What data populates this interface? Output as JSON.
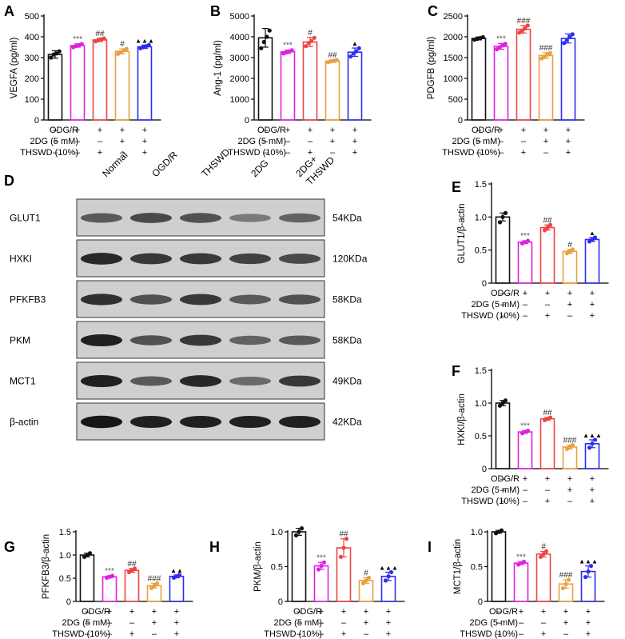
{
  "colors": [
    "#111111",
    "#e020e0",
    "#ee4444",
    "#e8a040",
    "#2c2cf0"
  ],
  "conditions": {
    "rows": [
      {
        "label": "ODG/R",
        "signs": [
          "—",
          "+",
          "+",
          "+",
          "+"
        ]
      },
      {
        "label": "2DG (5 mM)",
        "signs": [
          "—",
          "—",
          "—",
          "+",
          "+"
        ]
      },
      {
        "label": "THSWD (10%)",
        "signs": [
          "—",
          "—",
          "+",
          "—",
          "+"
        ]
      }
    ]
  },
  "blot": {
    "letter": "D",
    "lanes": [
      "Normal",
      "OGD/R",
      "THSWD",
      "2DG",
      "2DG+\nTHSWD"
    ],
    "rows": [
      {
        "protein": "GLUT1",
        "size": "54KDa",
        "intensity": [
          0.55,
          0.65,
          0.6,
          0.35,
          0.5
        ]
      },
      {
        "protein": "HXKI",
        "size": "120KDa",
        "intensity": [
          0.85,
          0.75,
          0.75,
          0.7,
          0.65
        ]
      },
      {
        "protein": "PFKFB3",
        "size": "58KDa",
        "intensity": [
          0.8,
          0.6,
          0.75,
          0.55,
          0.6
        ]
      },
      {
        "protein": "PKM",
        "size": "58KDa",
        "intensity": [
          0.9,
          0.6,
          0.75,
          0.5,
          0.55
        ]
      },
      {
        "protein": "MCT1",
        "size": "49KDa",
        "intensity": [
          0.9,
          0.55,
          0.85,
          0.45,
          0.75
        ]
      },
      {
        "protein": "β-actin",
        "size": "42KDa",
        "intensity": [
          0.95,
          0.9,
          0.9,
          0.9,
          0.9
        ]
      }
    ]
  },
  "chart_data": [
    {
      "panel": "A",
      "type": "bar",
      "ylabel": "VEGFA (pg/ml)",
      "ylim": [
        0,
        500
      ],
      "yticks": [
        0,
        100,
        200,
        300,
        400,
        500
      ],
      "values": [
        315,
        358,
        385,
        330,
        352
      ],
      "errors": [
        18,
        8,
        8,
        12,
        8
      ],
      "points": [
        [
          300,
          315,
          320,
          330
        ],
        [
          350,
          355,
          360,
          365
        ],
        [
          378,
          383,
          388,
          392
        ],
        [
          318,
          325,
          335,
          342
        ],
        [
          345,
          350,
          355,
          360
        ]
      ],
      "annotations": [
        "",
        "***",
        "##",
        "#",
        "▲▲▲"
      ]
    },
    {
      "panel": "B",
      "type": "bar",
      "ylabel": "Ang-1 (pg/ml)",
      "ylim": [
        0,
        5000
      ],
      "yticks": [
        0,
        1000,
        2000,
        3000,
        4000,
        5000
      ],
      "values": [
        3950,
        3280,
        3750,
        2830,
        3260
      ],
      "errors": [
        450,
        80,
        220,
        60,
        200
      ],
      "points": [
        [
          3450,
          3750,
          4000,
          4300
        ],
        [
          3200,
          3250,
          3300,
          3350
        ],
        [
          3550,
          3700,
          3800,
          3950
        ],
        [
          2780,
          2820,
          2850,
          2880
        ],
        [
          3050,
          3200,
          3300,
          3450
        ]
      ],
      "annotations": [
        "",
        "***",
        "#",
        "##",
        "▲"
      ]
    },
    {
      "panel": "C",
      "type": "bar",
      "ylabel": "PDGFB (pg/ml)",
      "ylim": [
        0,
        2500
      ],
      "yticks": [
        0,
        500,
        1000,
        1500,
        2000,
        2500
      ],
      "values": [
        1960,
        1770,
        2180,
        1550,
        1960
      ],
      "errors": [
        35,
        70,
        90,
        70,
        110
      ],
      "points": [
        [
          1930,
          1950,
          1970,
          1990
        ],
        [
          1700,
          1750,
          1790,
          1830
        ],
        [
          2100,
          2150,
          2200,
          2270
        ],
        [
          1480,
          1530,
          1570,
          1610
        ],
        [
          1850,
          1920,
          2000,
          2060
        ]
      ],
      "annotations": [
        "",
        "***",
        "###",
        "###",
        ""
      ]
    },
    {
      "panel": "E",
      "type": "bar",
      "ylabel": "GLUT1/β-actin",
      "ylim": [
        0,
        1.5
      ],
      "yticks": [
        0,
        0.5,
        1.0,
        1.5
      ],
      "values": [
        1.0,
        0.62,
        0.84,
        0.48,
        0.66
      ],
      "errors": [
        0.06,
        0.02,
        0.04,
        0.03,
        0.03
      ],
      "points": [
        [
          0.92,
          1.0,
          1.06
        ],
        [
          0.6,
          0.62,
          0.64
        ],
        [
          0.8,
          0.84,
          0.88
        ],
        [
          0.45,
          0.48,
          0.51
        ],
        [
          0.63,
          0.66,
          0.69
        ]
      ],
      "annotations": [
        "",
        "***",
        "##",
        "#",
        "▲"
      ]
    },
    {
      "panel": "F",
      "type": "bar",
      "ylabel": "HXKI/β-actin",
      "ylim": [
        0,
        1.5
      ],
      "yticks": [
        0,
        0.5,
        1.0,
        1.5
      ],
      "values": [
        1.0,
        0.56,
        0.76,
        0.33,
        0.38
      ],
      "errors": [
        0.04,
        0.02,
        0.02,
        0.03,
        0.06
      ],
      "points": [
        [
          0.96,
          1.0,
          1.04
        ],
        [
          0.54,
          0.56,
          0.58
        ],
        [
          0.74,
          0.76,
          0.78
        ],
        [
          0.3,
          0.33,
          0.36
        ],
        [
          0.32,
          0.38,
          0.44
        ]
      ],
      "annotations": [
        "",
        "***",
        "##",
        "###",
        "▲▲▲"
      ]
    },
    {
      "panel": "G",
      "type": "bar",
      "ylabel": "PFKFB3/β-actin",
      "ylim": [
        0,
        1.5
      ],
      "yticks": [
        0,
        0.5,
        1.0,
        1.5
      ],
      "values": [
        1.0,
        0.53,
        0.67,
        0.34,
        0.54
      ],
      "errors": [
        0.04,
        0.02,
        0.04,
        0.05,
        0.03
      ],
      "points": [
        [
          0.96,
          1.0,
          1.04
        ],
        [
          0.51,
          0.53,
          0.55
        ],
        [
          0.63,
          0.67,
          0.71
        ],
        [
          0.29,
          0.34,
          0.39
        ],
        [
          0.51,
          0.54,
          0.57
        ]
      ],
      "annotations": [
        "",
        "***",
        "##",
        "###",
        "▲▲"
      ]
    },
    {
      "panel": "H",
      "type": "bar",
      "ylabel": "PKM/β-actin",
      "ylim": [
        0,
        1.0
      ],
      "yticks": [
        0,
        0.5,
        1.0
      ],
      "values": [
        1.0,
        0.51,
        0.77,
        0.3,
        0.36
      ],
      "errors": [
        0.05,
        0.05,
        0.13,
        0.04,
        0.06
      ],
      "points": [
        [
          0.95,
          1.0,
          1.05
        ],
        [
          0.46,
          0.51,
          0.56
        ],
        [
          0.64,
          0.77,
          0.9
        ],
        [
          0.26,
          0.3,
          0.34
        ],
        [
          0.3,
          0.36,
          0.42
        ]
      ],
      "annotations": [
        "",
        "***",
        "##",
        "#",
        "▲▲▲"
      ]
    },
    {
      "panel": "I",
      "type": "bar",
      "ylabel": "MCT1/β-actin",
      "ylim": [
        0,
        1.0
      ],
      "yticks": [
        0,
        0.5,
        1.0
      ],
      "values": [
        1.0,
        0.55,
        0.68,
        0.25,
        0.43
      ],
      "errors": [
        0.02,
        0.02,
        0.04,
        0.06,
        0.08
      ],
      "points": [
        [
          0.98,
          1.0,
          1.02
        ],
        [
          0.53,
          0.55,
          0.57
        ],
        [
          0.64,
          0.68,
          0.72
        ],
        [
          0.19,
          0.25,
          0.31
        ],
        [
          0.35,
          0.43,
          0.51
        ]
      ],
      "annotations": [
        "",
        "***",
        "#",
        "###",
        "▲▲▲"
      ]
    }
  ]
}
